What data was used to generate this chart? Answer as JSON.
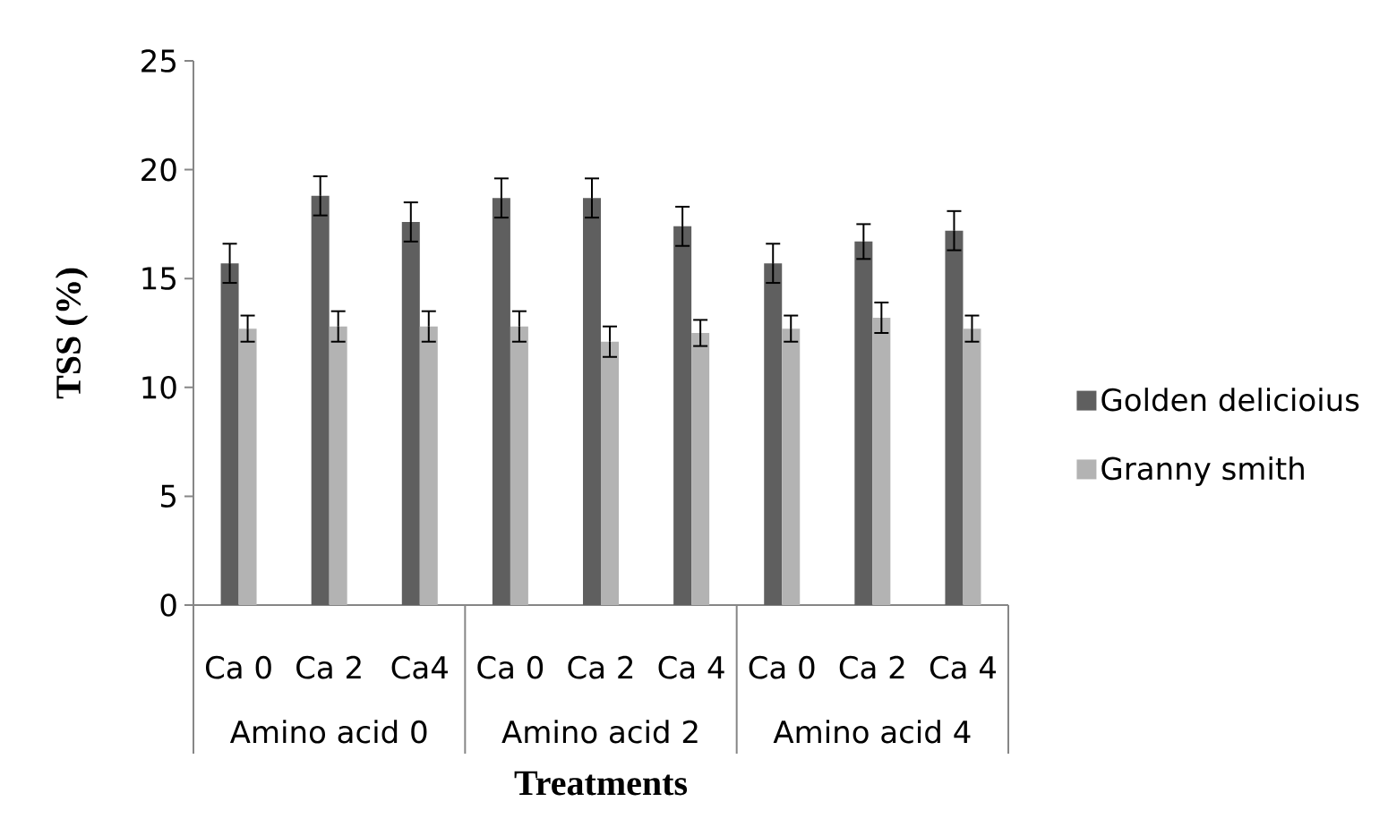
{
  "chart_data": {
    "type": "bar",
    "xlabel": "Treatments",
    "ylabel": "TSS (%)",
    "categories": [
      "Ca 0",
      "Ca 2",
      "Ca4",
      "Ca 0",
      "Ca 2",
      "Ca 4",
      "Ca 0",
      "Ca 2",
      "Ca 4"
    ],
    "annotations": [
      "Amino acid 0",
      "Amino acid 2",
      "Amino acid 4"
    ],
    "series": [
      {
        "name": "Golden delicioius",
        "color": "#5f5f5f",
        "values": [
          15.7,
          18.8,
          17.6,
          18.7,
          18.7,
          17.4,
          15.7,
          16.7,
          17.2
        ],
        "errors": [
          0.9,
          0.9,
          0.9,
          0.9,
          0.9,
          0.9,
          0.9,
          0.8,
          0.9
        ]
      },
      {
        "name": "Granny smith",
        "color": "#b3b3b3",
        "values": [
          12.7,
          12.8,
          12.8,
          12.8,
          12.1,
          12.5,
          12.7,
          13.2,
          12.7
        ],
        "errors": [
          0.6,
          0.7,
          0.7,
          0.7,
          0.7,
          0.6,
          0.6,
          0.7,
          0.6
        ]
      }
    ],
    "ylim": [
      0,
      25
    ],
    "yticks": [
      0,
      5,
      10,
      15,
      20,
      25
    ],
    "legend": "right"
  }
}
